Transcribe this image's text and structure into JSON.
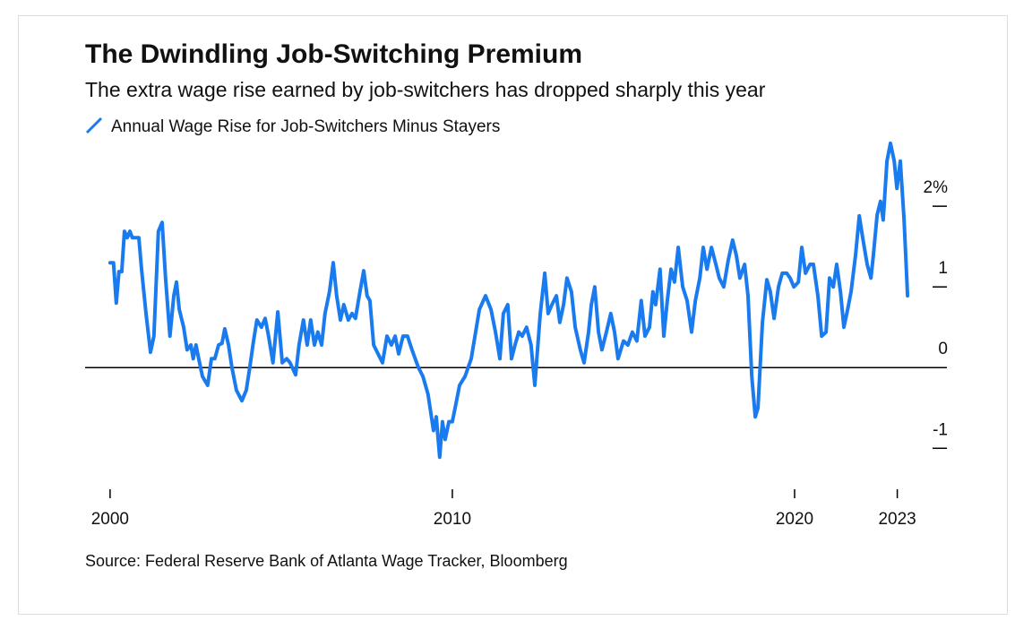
{
  "chart_data": {
    "type": "line",
    "title": "The Dwindling Job-Switching Premium",
    "subtitle": "The extra wage rise earned by job-switchers has dropped sharply this year",
    "source": "Source: Federal Reserve Bank of Atlanta Wage Tracker, Bloomberg",
    "x": [
      2000.0,
      2000.1,
      2000.18,
      2000.26,
      2000.34,
      2000.42,
      2000.5,
      2000.58,
      2000.65,
      2000.84,
      2000.92,
      2001.05,
      2001.18,
      2001.28,
      2001.41,
      2001.52,
      2001.62,
      2001.75,
      2001.86,
      2001.94,
      2002.02,
      2002.15,
      2002.25,
      2002.36,
      2002.43,
      2002.51,
      2002.59,
      2002.7,
      2002.85,
      2002.96,
      2003.06,
      2003.17,
      2003.27,
      2003.35,
      2003.46,
      2003.56,
      2003.69,
      2003.85,
      2003.98,
      2004.08,
      2004.19,
      2004.29,
      2004.42,
      2004.53,
      2004.63,
      2004.76,
      2004.9,
      2005.03,
      2005.16,
      2005.26,
      2005.42,
      2005.52,
      2005.65,
      2005.76,
      2005.86,
      2005.97,
      2006.07,
      2006.18,
      2006.28,
      2006.41,
      2006.52,
      2006.62,
      2006.73,
      2006.83,
      2006.96,
      2007.07,
      2007.17,
      2007.3,
      2007.41,
      2007.51,
      2007.59,
      2007.7,
      2007.83,
      2007.96,
      2008.09,
      2008.22,
      2008.33,
      2008.43,
      2008.56,
      2008.69,
      2008.82,
      2009.01,
      2009.14,
      2009.29,
      2009.45,
      2009.53,
      2009.63,
      2009.71,
      2009.79,
      2009.9,
      2010.0,
      2010.11,
      2010.21,
      2010.37,
      2010.55,
      2010.66,
      2010.79,
      2010.97,
      2011.13,
      2011.26,
      2011.39,
      2011.49,
      2011.62,
      2011.73,
      2011.83,
      2011.94,
      2012.04,
      2012.17,
      2012.3,
      2012.41,
      2012.57,
      2012.7,
      2012.8,
      2012.91,
      2013.04,
      2013.14,
      2013.25,
      2013.35,
      2013.48,
      2013.59,
      2013.74,
      2013.85,
      2013.98,
      2014.06,
      2014.16,
      2014.27,
      2014.37,
      2014.5,
      2014.63,
      2014.74,
      2014.84,
      2015.0,
      2015.13,
      2015.26,
      2015.39,
      2015.52,
      2015.63,
      2015.76,
      2015.86,
      2015.94,
      2016.07,
      2016.18,
      2016.28,
      2016.39,
      2016.49,
      2016.6,
      2016.73,
      2016.86,
      2016.99,
      2017.1,
      2017.23,
      2017.33,
      2017.44,
      2017.57,
      2017.7,
      2017.8,
      2017.93,
      2018.06,
      2018.19,
      2018.3,
      2018.4,
      2018.54,
      2018.64,
      2018.75,
      2018.85,
      2018.93,
      2019.06,
      2019.19,
      2019.29,
      2019.4,
      2019.53,
      2019.64,
      2019.77,
      2019.87,
      2019.98,
      2020.11,
      2020.21,
      2020.32,
      2020.45,
      2020.55,
      2020.68,
      2020.79,
      2020.92,
      2021.02,
      2021.13,
      2021.23,
      2021.34,
      2021.44,
      2021.55,
      2021.65,
      2021.78,
      2021.89,
      2021.99,
      2022.12,
      2022.23,
      2022.3,
      2022.41,
      2022.51,
      2022.59,
      2022.7,
      2022.8,
      2022.91,
      2022.99,
      2023.09,
      2023.2,
      2023.3
    ],
    "series": [
      {
        "name": "Annual Wage Rise for Job-Switchers Minus Stayers",
        "color": "#1a7bef",
        "values": [
          1.3,
          1.3,
          0.8,
          1.19,
          1.19,
          1.69,
          1.61,
          1.69,
          1.61,
          1.61,
          1.22,
          0.67,
          0.19,
          0.39,
          1.69,
          1.8,
          1.11,
          0.39,
          0.89,
          1.06,
          0.72,
          0.5,
          0.22,
          0.28,
          0.11,
          0.28,
          0.11,
          -0.11,
          -0.22,
          0.11,
          0.11,
          0.28,
          0.3,
          0.48,
          0.28,
          0.0,
          -0.28,
          -0.41,
          -0.28,
          0.0,
          0.33,
          0.59,
          0.5,
          0.61,
          0.39,
          0.06,
          0.69,
          0.06,
          0.11,
          0.06,
          -0.09,
          0.28,
          0.59,
          0.28,
          0.59,
          0.28,
          0.44,
          0.28,
          0.67,
          0.94,
          1.3,
          0.89,
          0.59,
          0.78,
          0.59,
          0.67,
          0.61,
          0.94,
          1.2,
          0.89,
          0.83,
          0.28,
          0.17,
          0.06,
          0.39,
          0.28,
          0.39,
          0.17,
          0.39,
          0.39,
          0.22,
          0.0,
          -0.11,
          -0.33,
          -0.78,
          -0.61,
          -1.11,
          -0.67,
          -0.89,
          -0.67,
          -0.67,
          -0.44,
          -0.22,
          -0.11,
          0.11,
          0.39,
          0.72,
          0.89,
          0.72,
          0.44,
          0.11,
          0.67,
          0.78,
          0.11,
          0.28,
          0.44,
          0.39,
          0.5,
          0.28,
          -0.22,
          0.67,
          1.17,
          0.67,
          0.78,
          0.89,
          0.56,
          0.78,
          1.11,
          0.94,
          0.5,
          0.22,
          0.06,
          0.44,
          0.78,
          1.0,
          0.44,
          0.22,
          0.44,
          0.67,
          0.44,
          0.11,
          0.33,
          0.28,
          0.44,
          0.33,
          0.83,
          0.39,
          0.5,
          0.94,
          0.78,
          1.22,
          0.39,
          0.83,
          1.22,
          1.06,
          1.49,
          1.0,
          0.83,
          0.44,
          0.83,
          1.11,
          1.49,
          1.22,
          1.49,
          1.28,
          1.11,
          1.0,
          1.33,
          1.58,
          1.39,
          1.11,
          1.28,
          0.89,
          -0.11,
          -0.61,
          -0.5,
          0.56,
          1.09,
          0.94,
          0.61,
          1.0,
          1.17,
          1.17,
          1.11,
          1.0,
          1.06,
          1.49,
          1.17,
          1.28,
          1.28,
          0.89,
          0.39,
          0.44,
          1.11,
          1.0,
          1.28,
          0.94,
          0.5,
          0.72,
          0.94,
          1.39,
          1.88,
          1.61,
          1.28,
          1.11,
          1.39,
          1.89,
          2.06,
          1.83,
          2.56,
          2.78,
          2.56,
          2.22,
          2.56,
          1.83,
          0.89
        ]
      }
    ],
    "xlim": [
      1999.27,
      2024.45
    ],
    "xticks": [
      2000,
      2010,
      2020,
      2023
    ],
    "ylim": [
      -1.33,
      2.89
    ],
    "yticks": [
      {
        "value": 2,
        "label": "2%"
      },
      1,
      0,
      -1
    ]
  }
}
